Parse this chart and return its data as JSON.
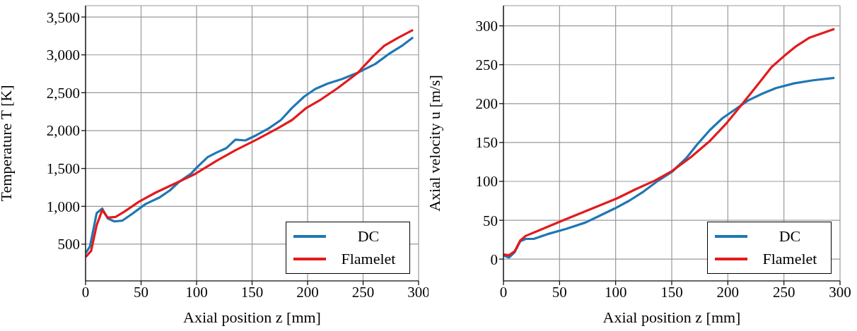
{
  "chart_data": [
    {
      "type": "line",
      "xlabel": "Axial position z [mm]",
      "ylabel": "Temperature T [K]",
      "xlim": [
        0,
        300
      ],
      "xticks": [
        0,
        50,
        100,
        150,
        200,
        250,
        300
      ],
      "ylim": [
        15,
        3650
      ],
      "yticks": [
        {
          "value": 500,
          "label": "500"
        },
        {
          "value": 1000,
          "label": "1,000"
        },
        {
          "value": 1500,
          "label": "1,500"
        },
        {
          "value": 2000,
          "label": "2,000"
        },
        {
          "value": 2500,
          "label": "2,500"
        },
        {
          "value": 3000,
          "label": "3,000"
        },
        {
          "value": 3500,
          "label": "3,500"
        }
      ],
      "grid": true,
      "legend": "bottom right",
      "line_style": "solid",
      "marker": "none",
      "series": [
        {
          "name": "DC",
          "color": "#1f77b4",
          "x": [
            0,
            4,
            10,
            15,
            20,
            26,
            33,
            42,
            54,
            67,
            76,
            84,
            95,
            100,
            110,
            118,
            127,
            135,
            144,
            154,
            165,
            176,
            186,
            197,
            207,
            218,
            231,
            246,
            261,
            273,
            286,
            295
          ],
          "values": [
            380,
            470,
            910,
            970,
            840,
            800,
            810,
            900,
            1030,
            1120,
            1210,
            1320,
            1430,
            1510,
            1650,
            1710,
            1770,
            1880,
            1870,
            1940,
            2030,
            2140,
            2300,
            2450,
            2550,
            2620,
            2680,
            2770,
            2880,
            3010,
            3130,
            3230
          ]
        },
        {
          "name": "Flamelet",
          "color": "#e31a1c",
          "x": [
            0,
            5,
            10,
            15,
            20,
            27,
            35,
            48,
            63,
            82,
            99,
            118,
            135,
            154,
            173,
            186,
            199,
            212,
            227,
            245,
            259,
            269,
            282,
            295
          ],
          "values": [
            330,
            410,
            750,
            950,
            850,
            860,
            930,
            1060,
            1180,
            1310,
            1430,
            1600,
            1740,
            1880,
            2030,
            2140,
            2300,
            2410,
            2560,
            2760,
            2980,
            3120,
            3230,
            3330
          ]
        }
      ]
    },
    {
      "type": "line",
      "xlabel": "Axial position z [mm]",
      "ylabel": "Axial velocity u [m/s]",
      "xlim": [
        0,
        300
      ],
      "xticks": [
        0,
        50,
        100,
        150,
        200,
        250,
        300
      ],
      "ylim": [
        -28,
        326
      ],
      "yticks": [
        0,
        50,
        100,
        150,
        200,
        250,
        300
      ],
      "grid": true,
      "legend": "bottom right",
      "line_style": "solid",
      "marker": "none",
      "series": [
        {
          "name": "DC",
          "color": "#1f77b4",
          "x": [
            0,
            5,
            10,
            15,
            20,
            27,
            39,
            56,
            73,
            86,
            99,
            112,
            125,
            137,
            150,
            163,
            173,
            184,
            195,
            205,
            218,
            231,
            243,
            259,
            276,
            295
          ],
          "values": [
            5,
            2,
            9,
            23,
            26,
            26,
            32,
            39,
            47,
            56,
            65,
            75,
            87,
            100,
            112,
            130,
            148,
            166,
            181,
            191,
            204,
            213,
            220,
            226,
            230,
            233
          ]
        },
        {
          "name": "Flamelet",
          "color": "#e31a1c",
          "x": [
            0,
            5,
            10,
            15,
            20,
            35,
            50,
            67,
            84,
            101,
            118,
            135,
            150,
            167,
            184,
            199,
            212,
            227,
            239,
            250,
            261,
            273,
            295
          ],
          "values": [
            6,
            5,
            10,
            24,
            30,
            39,
            48,
            58,
            68,
            78,
            90,
            101,
            113,
            131,
            152,
            175,
            198,
            225,
            247,
            261,
            274,
            285,
            296
          ]
        }
      ]
    }
  ]
}
